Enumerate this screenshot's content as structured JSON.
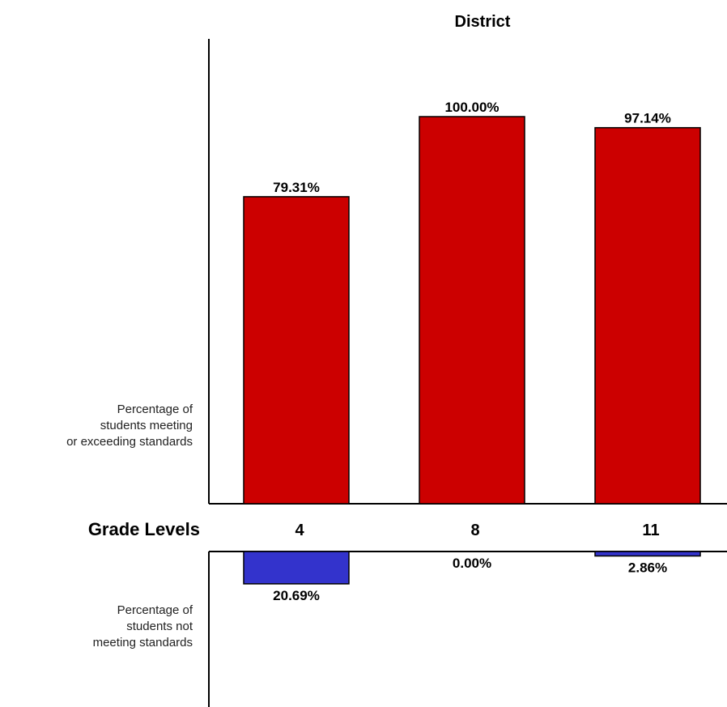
{
  "chart_data": {
    "type": "bar",
    "title": "District",
    "categories": [
      "4",
      "8",
      "11"
    ],
    "category_axis_label": "Grade Levels",
    "series": [
      {
        "name": "",
        "description": [
          "Percentage of",
          "students meeting",
          "or exceeding standards"
        ],
        "values": [
          79.31,
          100.0,
          97.14
        ],
        "labels": [
          "79.31%",
          "100.00%",
          "97.14%"
        ],
        "color": "#cc0000",
        "direction": "up"
      },
      {
        "name": "",
        "description": [
          "Percentage of",
          "students not",
          "meeting standards"
        ],
        "values": [
          20.69,
          0.0,
          2.86
        ],
        "labels": [
          "20.69%",
          "0.00%",
          "2.86%"
        ],
        "color": "#3333cc",
        "direction": "down"
      }
    ],
    "ylim_upper": [
      0,
      100
    ],
    "ylim_lower": [
      0,
      100
    ],
    "grid": false,
    "legend": "none"
  }
}
